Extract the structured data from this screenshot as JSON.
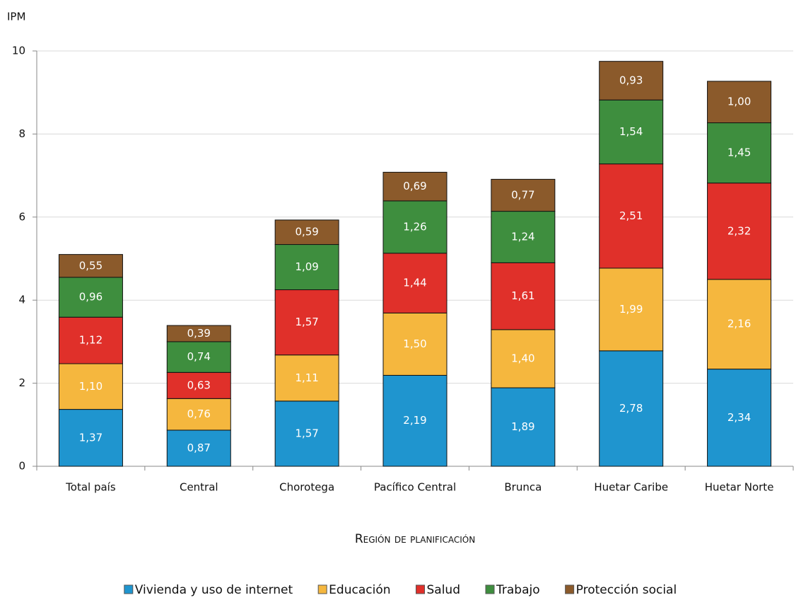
{
  "chart_data": {
    "type": "stacked_bar",
    "y_label": "IPM",
    "x_label": "Región de planificación",
    "categories": [
      "Total país",
      "Central",
      "Chorotega",
      "Pacífico Central",
      "Brunca",
      "Huetar Caribe",
      "Huetar Norte"
    ],
    "series": [
      {
        "name": "Vivienda y uso de internet",
        "color": "#1f95cf",
        "values": [
          1.37,
          0.87,
          1.57,
          2.19,
          1.89,
          2.78,
          2.34
        ],
        "value_labels": [
          "1,37",
          "0,87",
          "1,57",
          "2,19",
          "1,89",
          "2,78",
          "2,34"
        ]
      },
      {
        "name": "Educación",
        "color": "#f5b73e",
        "values": [
          1.1,
          0.76,
          1.11,
          1.5,
          1.4,
          1.99,
          2.16
        ],
        "value_labels": [
          "1,10",
          "0,76",
          "1,11",
          "1,50",
          "1,40",
          "1,99",
          "2,16"
        ]
      },
      {
        "name": "Salud",
        "color": "#e0302a",
        "values": [
          1.12,
          0.63,
          1.57,
          1.44,
          1.61,
          2.51,
          2.32
        ],
        "value_labels": [
          "1,12",
          "0,63",
          "1,57",
          "1,44",
          "1,61",
          "2,51",
          "2,32"
        ]
      },
      {
        "name": "Trabajo",
        "color": "#3e8e3e",
        "values": [
          0.96,
          0.74,
          1.09,
          1.26,
          1.24,
          1.54,
          1.45
        ],
        "value_labels": [
          "0,96",
          "0,74",
          "1,09",
          "1,26",
          "1,24",
          "1,54",
          "1,45"
        ]
      },
      {
        "name": "Protección social",
        "color": "#8b5a2b",
        "values": [
          0.55,
          0.39,
          0.59,
          0.69,
          0.77,
          0.93,
          1.0
        ],
        "value_labels": [
          "0,55",
          "0,39",
          "0,59",
          "0,69",
          "0,77",
          "0,93",
          "1,00"
        ]
      }
    ],
    "ylim": [
      0,
      10
    ],
    "yticks": [
      0,
      2,
      4,
      6,
      8,
      10
    ],
    "grid": true,
    "legend": "bottom"
  }
}
